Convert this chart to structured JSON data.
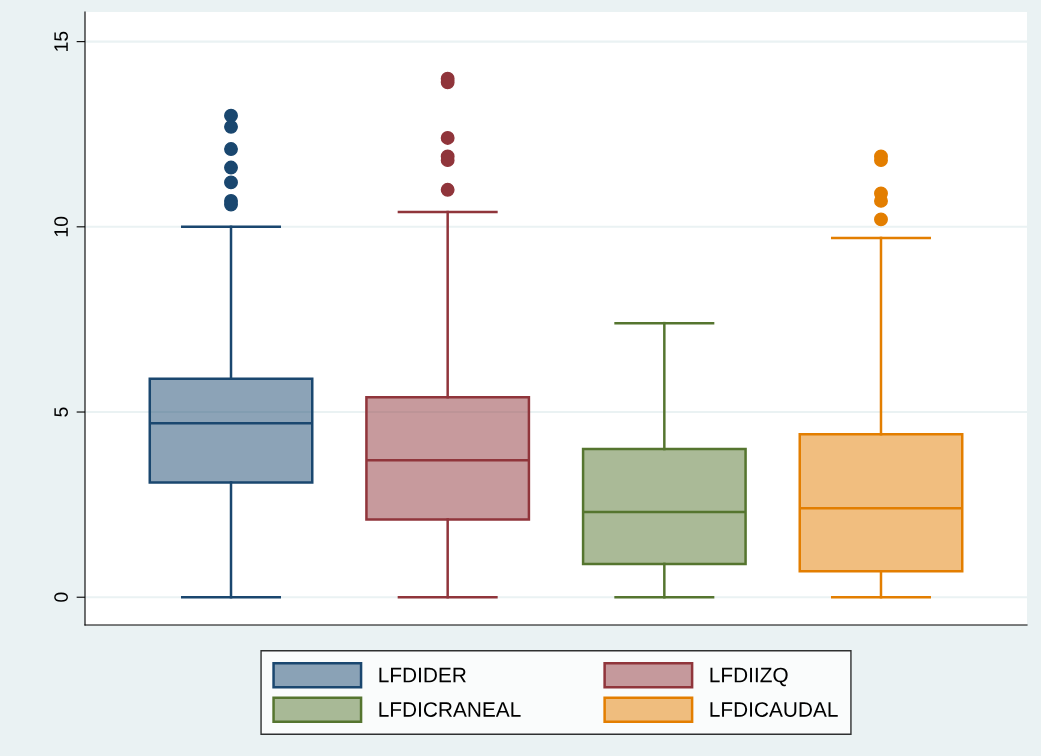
{
  "chart_data": {
    "type": "box",
    "categories": [
      null
    ],
    "series": [
      {
        "name": "LFDIDER",
        "color": "#1a476f",
        "boxes": [
          {
            "low": 0,
            "q1": 3.1,
            "median": 4.7,
            "q3": 5.9,
            "high": 10.0,
            "outliers": [
              13.0,
              12.7,
              12.1,
              11.6,
              11.2,
              10.7,
              10.6
            ]
          }
        ]
      },
      {
        "name": "LFDIIZQ",
        "color": "#90353b",
        "boxes": [
          {
            "low": 0,
            "q1": 2.1,
            "median": 3.7,
            "q3": 5.4,
            "high": 10.4,
            "outliers": [
              14.0,
              13.9,
              12.4,
              11.9,
              11.8,
              11.0
            ]
          }
        ]
      },
      {
        "name": "LFDICRANEAL",
        "color": "#55752f",
        "boxes": [
          {
            "low": 0,
            "q1": 0.9,
            "median": 2.3,
            "q3": 4.0,
            "high": 7.4
          }
        ]
      },
      {
        "name": "LFDICAUDAL",
        "color": "#e37e00",
        "boxes": [
          {
            "low": 0,
            "q1": 0.7,
            "median": 2.4,
            "q3": 4.4,
            "high": 9.7,
            "outliers": [
              11.9,
              11.8,
              10.9,
              10.7,
              10.2
            ]
          }
        ]
      }
    ],
    "ylim": [
      -0.75,
      15.8
    ],
    "yticks": [
      0,
      5,
      10,
      15
    ],
    "grid": "y",
    "legend": "bottom"
  }
}
